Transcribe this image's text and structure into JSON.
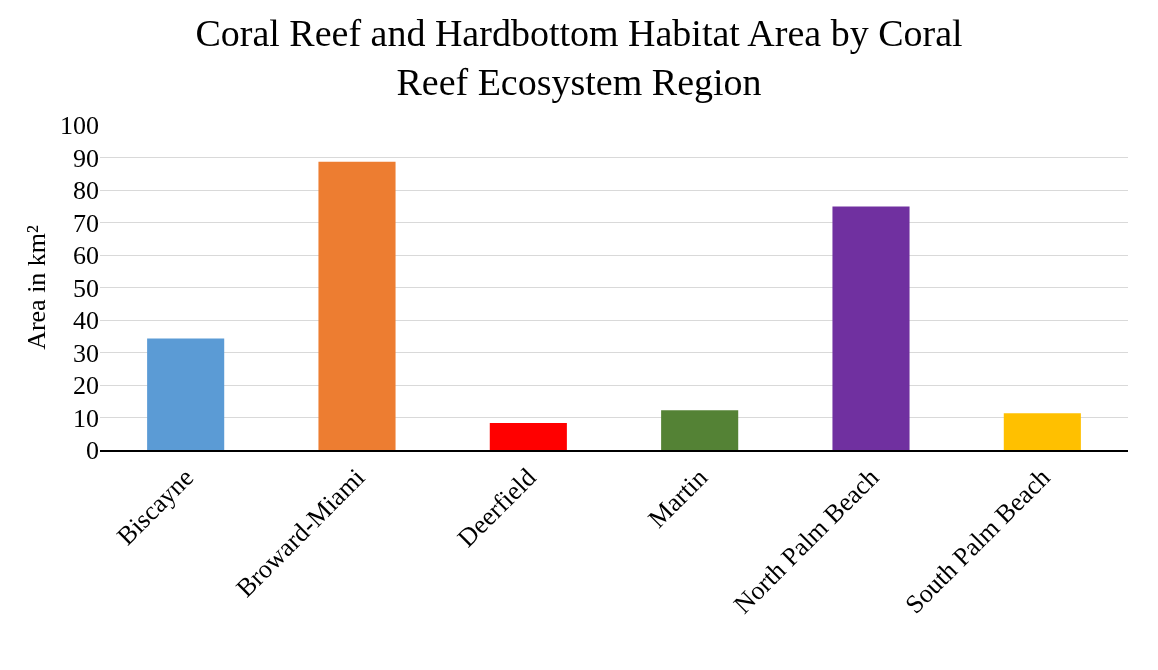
{
  "chart_data": {
    "type": "bar",
    "title": "Coral Reef and Hardbottom Habitat Area by Coral Reef Ecosystem Region",
    "ylabel": "Area in km²",
    "categories": [
      "Biscayne",
      "Broward-Miami",
      "Deerfield",
      "Martin",
      "North Palm Beach",
      "South Palm Beach"
    ],
    "values": [
      34.3,
      88.7,
      8.3,
      12.2,
      74.9,
      11.3
    ],
    "colors": [
      "#5b9bd5",
      "#ed7d31",
      "#ff0000",
      "#548235",
      "#7030a0",
      "#ffc000"
    ],
    "ylim": [
      0,
      100
    ],
    "yticks": [
      0,
      10,
      20,
      30,
      40,
      50,
      60,
      70,
      80,
      90,
      100
    ],
    "grid": "y"
  }
}
